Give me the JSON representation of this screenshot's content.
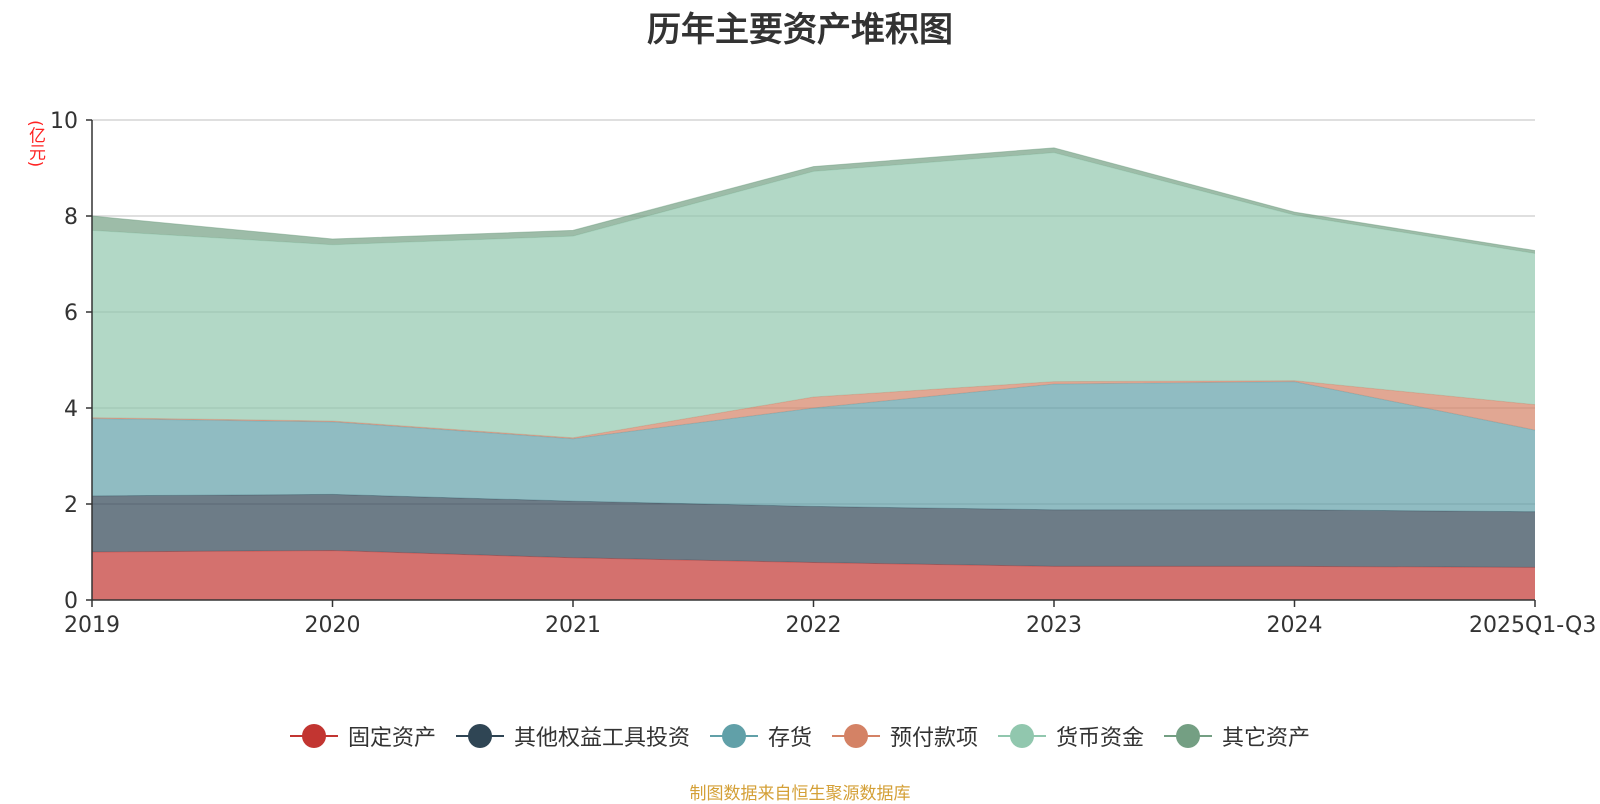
{
  "chart_data": {
    "type": "area",
    "stacked": true,
    "title": "历年主要资产堆积图",
    "unit_label": "(亿元)",
    "x": [
      "2019",
      "2020",
      "2021",
      "2022",
      "2023",
      "2024",
      "2025Q1-Q3"
    ],
    "ylim": [
      0,
      10
    ],
    "yticks": [
      "0",
      "2",
      "4",
      "6",
      "8",
      "10"
    ],
    "grid": true,
    "legend_position": "bottom",
    "series": [
      {
        "name": "固定资产",
        "color": "#c23531",
        "values": [
          1.0,
          1.03,
          0.88,
          0.78,
          0.7,
          0.7,
          0.68
        ]
      },
      {
        "name": "其他权益工具投资",
        "color": "#2f4554",
        "values": [
          1.17,
          1.17,
          1.18,
          1.17,
          1.18,
          1.18,
          1.16
        ]
      },
      {
        "name": "存货",
        "color": "#61a0a8",
        "values": [
          1.61,
          1.51,
          1.3,
          2.05,
          2.62,
          2.67,
          1.7
        ]
      },
      {
        "name": "预付款项",
        "color": "#d48265",
        "values": [
          0.02,
          0.02,
          0.02,
          0.23,
          0.05,
          0.02,
          0.53
        ]
      },
      {
        "name": "货币资金",
        "color": "#91c7ae",
        "values": [
          3.9,
          3.67,
          4.2,
          4.7,
          4.77,
          3.45,
          3.15
        ]
      },
      {
        "name": "其它资产",
        "color": "#749f83",
        "values": [
          0.3,
          0.12,
          0.12,
          0.1,
          0.1,
          0.06,
          0.06
        ]
      }
    ]
  },
  "source_text": "制图数据来自恒生聚源数据库"
}
